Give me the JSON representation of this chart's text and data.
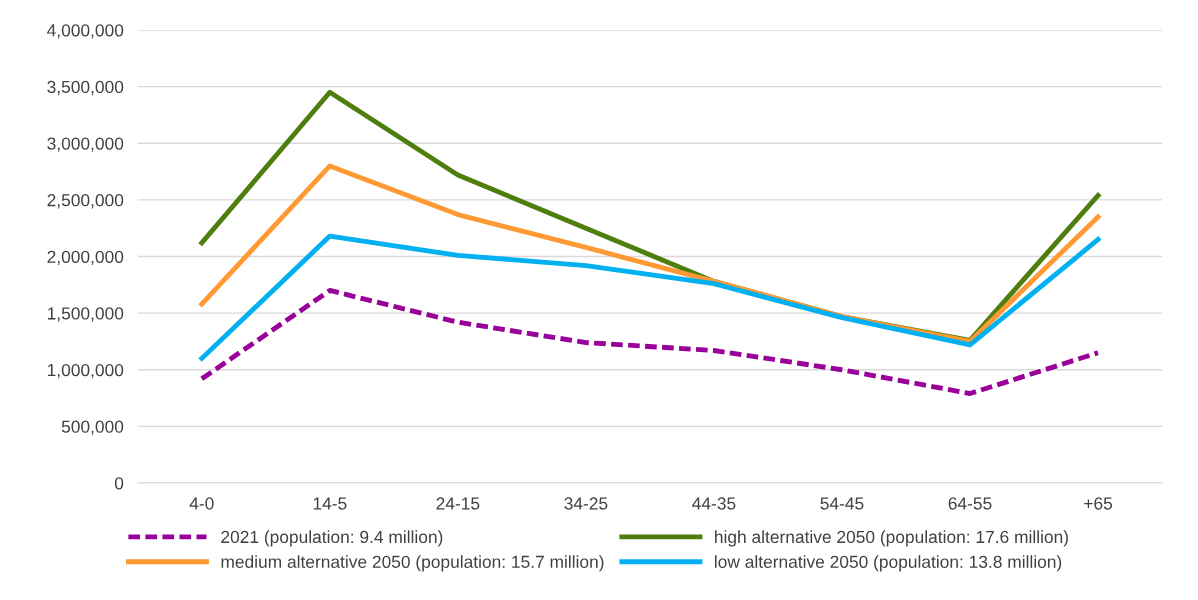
{
  "chart_data": {
    "type": "line",
    "categories": [
      "4-0",
      "14-5",
      "24-15",
      "34-25",
      "44-35",
      "54-45",
      "64-55",
      "+65"
    ],
    "series": [
      {
        "name": "2021 (population: 9.4 million)",
        "color": "#990099",
        "line_style": "dashed",
        "values": [
          920000,
          1700000,
          1420000,
          1240000,
          1170000,
          1000000,
          790000,
          1150000
        ]
      },
      {
        "name": "high alternative 2050 (population: 17.6 million)",
        "color": "#4e7f0e",
        "line_style": "solid",
        "values": [
          2120000,
          3450000,
          2720000,
          2250000,
          1780000,
          1470000,
          1260000,
          2540000
        ]
      },
      {
        "name": "medium alternative 2050 (population: 15.7 million)",
        "color": "#ff9933",
        "line_style": "solid",
        "values": [
          1580000,
          2800000,
          2370000,
          2080000,
          1780000,
          1470000,
          1250000,
          2350000
        ]
      },
      {
        "name": "low alternative 2050 (population: 13.8 million)",
        "color": "#00b0f0",
        "line_style": "solid",
        "values": [
          1100000,
          2180000,
          2010000,
          1920000,
          1760000,
          1460000,
          1220000,
          2150000
        ]
      }
    ],
    "ylim": [
      0,
      4000000
    ],
    "yticks": [
      {
        "value": 0,
        "label": "0"
      },
      {
        "value": 500000,
        "label": "500,000"
      },
      {
        "value": 1000000,
        "label": "1,000,000"
      },
      {
        "value": 1500000,
        "label": "1,500,000"
      },
      {
        "value": 2000000,
        "label": "2,000,000"
      },
      {
        "value": 2500000,
        "label": "2,500,000"
      },
      {
        "value": 3000000,
        "label": "3,000,000"
      },
      {
        "value": 3500000,
        "label": "3,500,000"
      },
      {
        "value": 4000000,
        "label": "4,000,000"
      }
    ],
    "grid": "y",
    "legend": "bottom",
    "marker": "none"
  }
}
